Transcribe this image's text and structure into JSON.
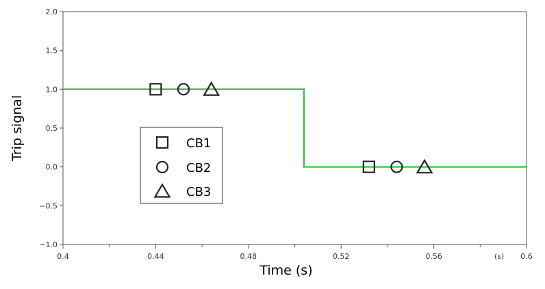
{
  "chart_data": {
    "type": "line",
    "xlabel": "Time (s)",
    "ylabel": "Trip signal",
    "x_unit_label": "(s)",
    "xlim": [
      0.4,
      0.6
    ],
    "ylim": [
      -1.0,
      2.0
    ],
    "x_ticks": [
      {
        "value": 0.4,
        "label": "0.4"
      },
      {
        "value": 0.44,
        "label": "0.44"
      },
      {
        "value": 0.48,
        "label": "0.48"
      },
      {
        "value": 0.52,
        "label": "0.52"
      },
      {
        "value": 0.56,
        "label": "0.56"
      },
      {
        "value": 0.6,
        "label": "0.6"
      }
    ],
    "y_ticks": [
      {
        "value": -1.0,
        "label": "−1.0"
      },
      {
        "value": -0.5,
        "label": "−0.5"
      },
      {
        "value": 0.0,
        "label": "0.0"
      },
      {
        "value": 0.5,
        "label": "0.5"
      },
      {
        "value": 1.0,
        "label": "1.0"
      },
      {
        "value": 1.5,
        "label": "1.5"
      },
      {
        "value": 2.0,
        "label": "2.0"
      }
    ],
    "grid": false,
    "legend_position": "center-left",
    "line": {
      "color": "#33bb33",
      "x": [
        0.4,
        0.504,
        0.504,
        0.6
      ],
      "y": [
        1.0,
        1.0,
        0.0,
        0.0
      ]
    },
    "series": [
      {
        "name": "CB1",
        "marker": "square",
        "x": [
          0.44,
          0.532
        ],
        "y": [
          1.0,
          0.0
        ]
      },
      {
        "name": "CB2",
        "marker": "circle",
        "x": [
          0.452,
          0.544
        ],
        "y": [
          1.0,
          0.0
        ]
      },
      {
        "name": "CB3",
        "marker": "triangle",
        "x": [
          0.464,
          0.556
        ],
        "y": [
          1.0,
          0.0
        ]
      }
    ]
  }
}
